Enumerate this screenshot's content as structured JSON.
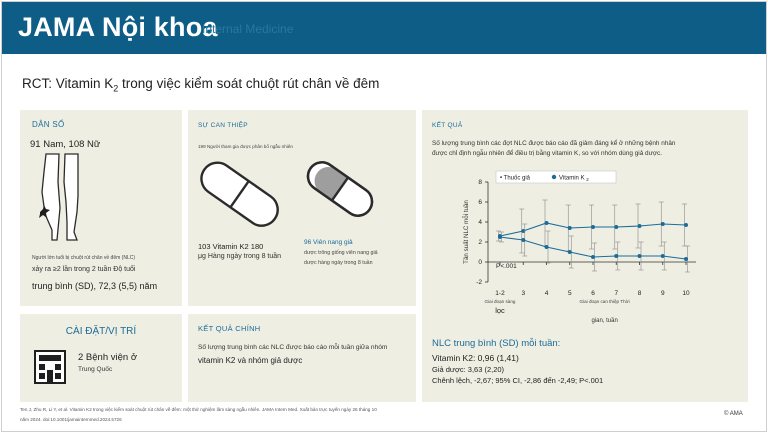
{
  "header": {
    "brand": "JAMA Nội khoa",
    "brand_ghost": "Internal Medicine"
  },
  "title": {
    "main": "RCT: Vitamin K",
    "sub": "2",
    "rest": " trong việc kiểm soát chuột rút chân về đêm"
  },
  "population": {
    "label": "DÂN SỐ",
    "counts": "91 Nam, 108 Nữ",
    "desc1": "Người lớn tuổi bị chuột rút chân về đêm (NLC)",
    "desc2": "xảy ra ≥2 lần trong 2 tuần Độ tuổi",
    "age": "trung bình (SD), 72,3 (5,5) năm"
  },
  "setting": {
    "label": "CÀI ĐẶT/VỊ TRÍ",
    "hospitals": "2 Bệnh viện ở",
    "country": "Trung Quốc"
  },
  "intervention": {
    "label": "SỰ CAN THIỆP",
    "randomized": "199 Người tham gia được phân bổ ngẫu nhiên",
    "vitk_line1": "103 Vitamin K2 180",
    "vitk_line2": "μg Hàng ngày trong 8 tuần",
    "placebo_line1": "96 Viên nang giả",
    "placebo_line2": "dược trông giống viên nang giả",
    "placebo_line3": "dược hàng ngày trong 8 tuần"
  },
  "primary_outcome": {
    "label": "KẾT QUẢ CHÍNH",
    "line1": "Số lượng trung bình các NLC được báo cáo mỗi tuần giữa nhóm",
    "line2": "vitamin K2 và nhóm giả dược"
  },
  "findings": {
    "label": "KẾT QUẢ",
    "text1": "Số lượng trung bình các đợt NLC được báo cáo đã giảm đáng kể ở những bệnh nhân",
    "text2": "được chỉ định ngẫu nhiên để điều trị bằng vitamin K, so với nhóm dùng giả dược.",
    "summary_title": "NLC trung bình (SD) mỗi tuần:",
    "vitk": "Vitamin K2: 0,96 (1,41)",
    "placebo": "Giả dược: 3,63 (2,20)",
    "difference": "Chênh lệch, -2,67; 95% CI, -2,86 đến -2,49; P<.001"
  },
  "chart_data": {
    "type": "line",
    "ylabel": "Tần suất NLC mỗi tuần",
    "xlabel": "gian, tuần",
    "x_ticks": [
      "1-2",
      "3",
      "4",
      "5",
      "6",
      "7",
      "8",
      "9",
      "10"
    ],
    "y_ticks": [
      "-2",
      "0",
      "2",
      "4",
      "6",
      "8"
    ],
    "ylim": [
      -2,
      8
    ],
    "period_baseline_1": "Giai đoạn sàng",
    "period_baseline_2": "lọc",
    "period_treatment": "Giai đoạn can thiệp Thời",
    "pvalue": "P<.001",
    "grid": false,
    "legend_position": "top",
    "series": [
      {
        "name": "Thuốc giả",
        "color": "#1b6c99",
        "marker": "circle",
        "values": [
          2.6,
          3.1,
          3.9,
          3.4,
          3.5,
          3.5,
          3.6,
          3.8,
          3.7
        ],
        "err": [
          0.5,
          2.2,
          2.3,
          2.3,
          2.2,
          2.2,
          2.2,
          2.2,
          2.1
        ]
      },
      {
        "name": "Vitamin K",
        "name_sub": "2",
        "color": "#1b6c99",
        "marker": "circle",
        "values": [
          2.5,
          2.2,
          1.5,
          1.0,
          0.5,
          0.6,
          0.6,
          0.6,
          0.3
        ],
        "err": [
          0.5,
          1.6,
          1.6,
          1.6,
          1.4,
          1.4,
          1.4,
          1.4,
          1.3
        ]
      }
    ]
  },
  "footer": {
    "citation1": "Ten J, Zhu R, Li Y, et al. Vitamin K2 trong việc kiểm soát chuột rút chân về đêm: một thử nghiệm lâm sàng ngẫu nhiên. JAMA Intern Med. Xuất bản trực tuyến ngày 26 tháng 10",
    "citation2": "năm 2024. doi:10.1001/jamainternmed.2024.5726",
    "copyright": "© AMA"
  },
  "colors": {
    "header": "#0d5d86",
    "accent": "#1b6c99",
    "panel": "#efeee3"
  }
}
